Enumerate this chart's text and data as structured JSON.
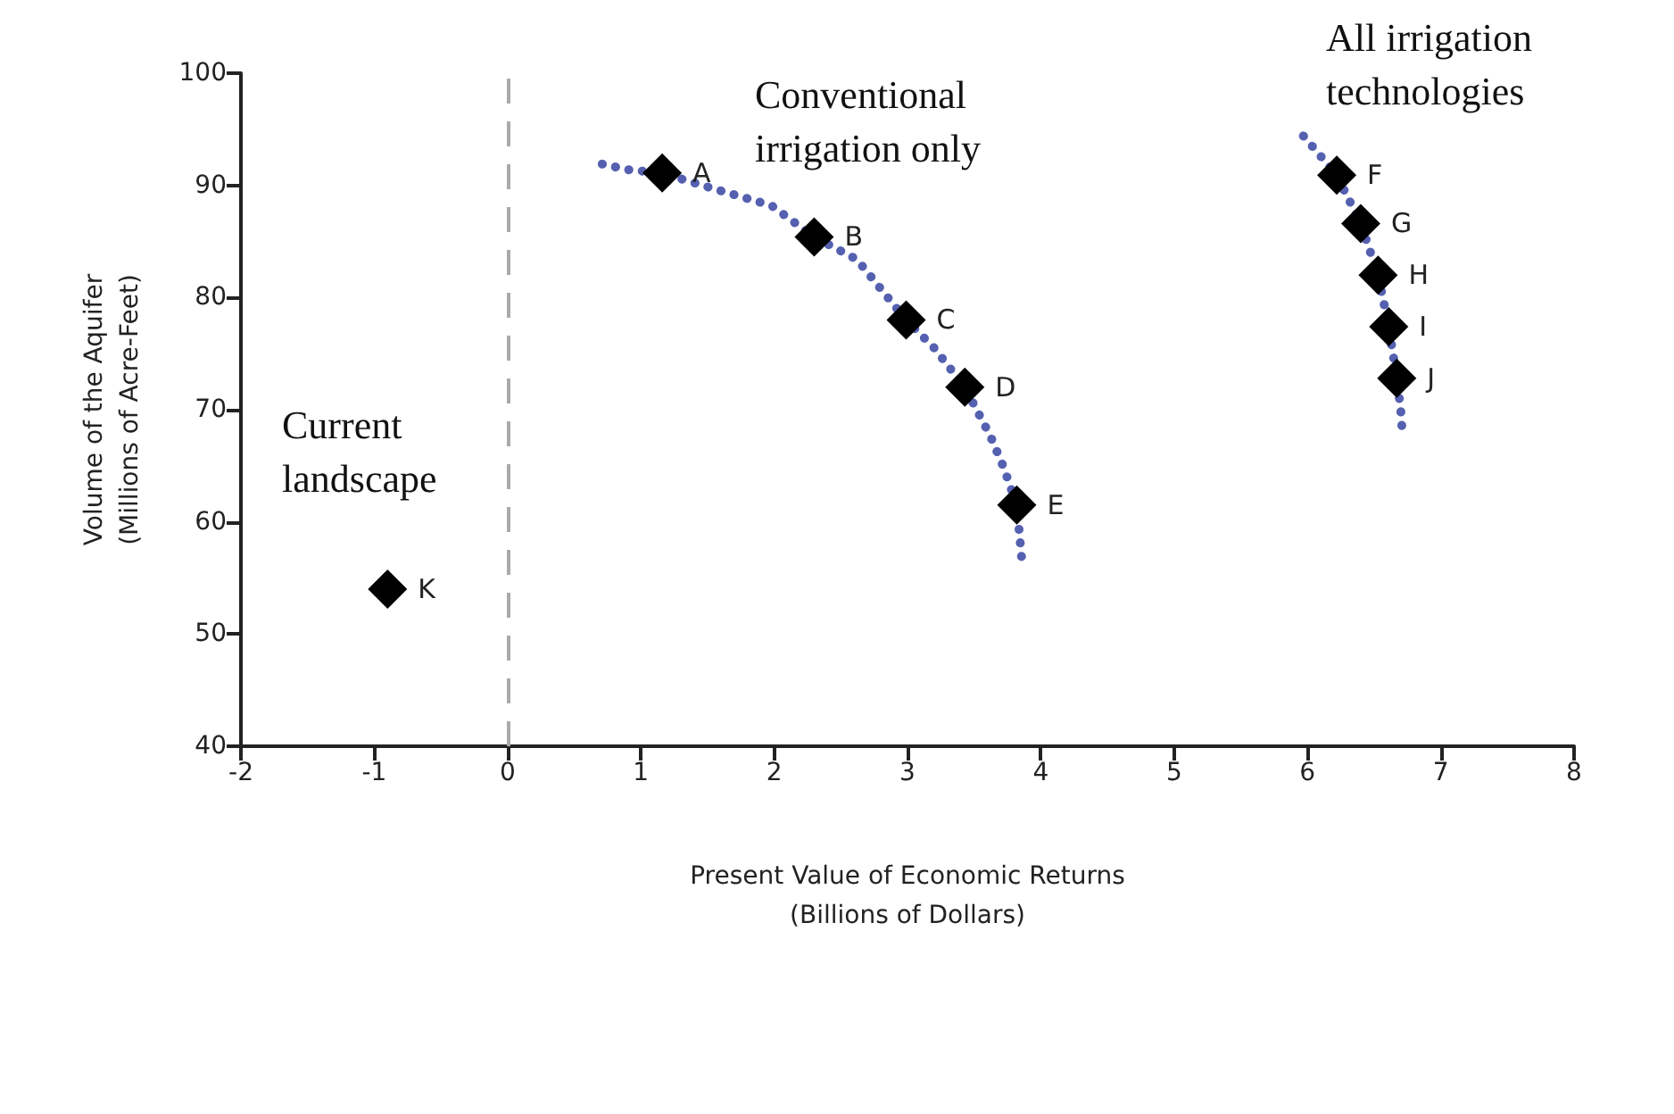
{
  "chart_data": {
    "type": "scatter",
    "xlabel": "Present Value of Economic Returns\n(Billions of Dollars)",
    "ylabel": "Volume of the Aquifer\n(Millions of Acre-Feet)",
    "xlim": [
      -2,
      8
    ],
    "xticks": [
      -2,
      -1,
      0,
      1,
      2,
      3,
      4,
      5,
      6,
      7,
      8
    ],
    "ylim": [
      40,
      100
    ],
    "yticks": [
      40,
      50,
      60,
      70,
      80,
      90,
      100
    ],
    "grid": false,
    "annotations": [
      "Conventional\nirrigation only",
      "Current\nlandscape",
      "All irrigation\ntechnologies"
    ],
    "ref_lines": [
      {
        "axis": "x",
        "value": 0,
        "color": "#aaaaaa",
        "line_style": "dashed"
      }
    ],
    "series": [
      {
        "type": "line",
        "color": "#5560b0",
        "line_style": "dotted",
        "marker": "none",
        "x": [
          0.71,
          0.9,
          1.16,
          1.49,
          1.98,
          2.3,
          2.62,
          2.99,
          3.2,
          3.43,
          3.62,
          3.72,
          3.82,
          3.86
        ],
        "values": [
          91.9,
          91.4,
          91.1,
          89.9,
          88.2,
          85.4,
          83.4,
          78.0,
          75.5,
          72.0,
          67.7,
          64.9,
          61.5,
          56.3
        ]
      },
      {
        "type": "line",
        "color": "#5560b0",
        "line_style": "dotted",
        "marker": "none",
        "x": [
          5.97,
          6.05,
          6.22,
          6.4,
          6.53,
          6.61,
          6.67,
          6.7,
          6.71
        ],
        "values": [
          94.4,
          93.3,
          90.9,
          86.6,
          82.0,
          77.4,
          72.8,
          70.0,
          68.2
        ]
      },
      {
        "color": "#000000",
        "marker": "diamond",
        "x": [
          1.16,
          2.3,
          2.99,
          3.43,
          3.82,
          6.22,
          6.4,
          6.53,
          6.61,
          6.67,
          -0.9
        ],
        "values": [
          91.1,
          85.4,
          78.0,
          72.0,
          61.5,
          90.9,
          86.6,
          82.0,
          77.4,
          72.8,
          54.0
        ],
        "value_labels": [
          "A",
          "B",
          "C",
          "D",
          "E",
          "F",
          "G",
          "H",
          "I",
          "J",
          "K"
        ]
      }
    ]
  }
}
